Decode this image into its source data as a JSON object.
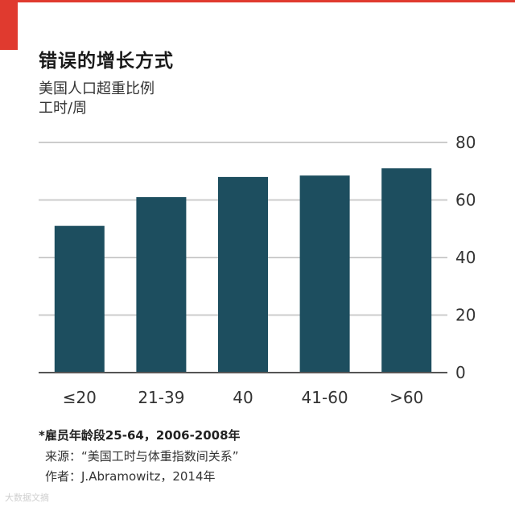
{
  "chart_data": {
    "type": "bar",
    "title": "错误的增长方式",
    "subtitle_line1": "美国人口超重比例",
    "subtitle_line2": "工时/周",
    "categories": [
      "≤20",
      "21-39",
      "40",
      "41-60",
      ">60"
    ],
    "values": [
      51,
      61,
      68,
      68.5,
      71
    ],
    "ylim": [
      0,
      80
    ],
    "yticks": [
      "0",
      "20",
      "40",
      "60",
      "80"
    ],
    "ytick_values": [
      0,
      20,
      40,
      60,
      80
    ],
    "grid": true,
    "y_axis_side": "right",
    "bar_color": "#1d4e5f",
    "grid_color": "#cccccc",
    "axis_color": "#555555"
  },
  "notes": {
    "footnote": "*雇员年龄段25-64，2006-2008年",
    "source": "来源：“美国工时与体重指数间关系”",
    "author": "作者：J.Abramowitz，2014年"
  },
  "watermark": {
    "text": "大数据文摘"
  },
  "colors": {
    "accent": "#e03a2f"
  }
}
